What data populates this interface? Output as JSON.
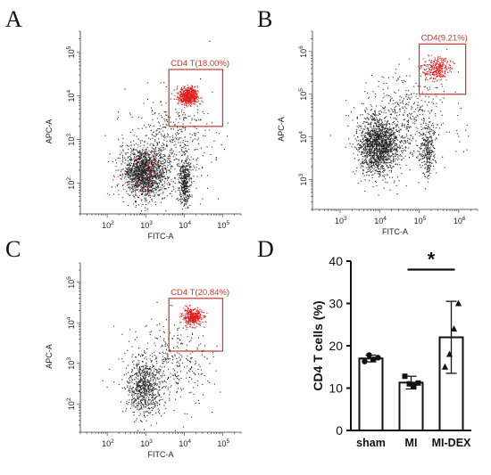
{
  "panels": {
    "A": {
      "label": "A",
      "xlabel": "FITC-A",
      "ylabel": "APC-A",
      "gate_label": "CD4 T(18.00%)",
      "x_ticks": [
        "10^2",
        "10^3",
        "10^4",
        "10^5"
      ],
      "y_ticks": [
        "10^2",
        "10^3",
        "10^4",
        "10^5"
      ],
      "x_exp": [
        2,
        3,
        4,
        5
      ],
      "y_exp": [
        2,
        3,
        4,
        5
      ]
    },
    "B": {
      "label": "B",
      "xlabel": "FITC-A",
      "ylabel": "APC-A",
      "gate_label": "CD4(9.21%)",
      "x_ticks": [
        "10^3",
        "10^4",
        "10^5",
        "10^6"
      ],
      "y_ticks": [
        "10^3",
        "10^4",
        "10^5",
        "10^6"
      ],
      "x_exp": [
        3,
        4,
        5,
        6
      ],
      "y_exp": [
        3,
        4,
        5,
        6
      ]
    },
    "C": {
      "label": "C",
      "xlabel": "FITC-A",
      "ylabel": "APC-A",
      "gate_label": "CD4 T(20.84%)",
      "x_ticks": [
        "10^2",
        "10^3",
        "10^4",
        "10^5"
      ],
      "y_ticks": [
        "10^2",
        "10^3",
        "10^4",
        "10^5"
      ],
      "x_exp": [
        2,
        3,
        4,
        5
      ],
      "y_exp": [
        2,
        3,
        4,
        5
      ]
    },
    "D": {
      "label": "D"
    }
  },
  "colors": {
    "gated_events": "#e01b1b",
    "ungated_events": "#222222",
    "gate_border": "#c0392b"
  },
  "chart_data": [
    {
      "type": "scatter",
      "panel": "A",
      "xlabel": "FITC-A",
      "ylabel": "APC-A",
      "scale": "log",
      "xlim": [
        20,
        300000
      ],
      "ylim": [
        20,
        300000
      ],
      "gate": {
        "label": "CD4 T(18.00%)",
        "x_range": [
          4000,
          100000
        ],
        "y_range": [
          2000,
          40000
        ],
        "percent": 18.0
      }
    },
    {
      "type": "scatter",
      "panel": "B",
      "xlabel": "FITC-A",
      "ylabel": "APC-A",
      "scale": "log",
      "xlim": [
        200,
        3000000
      ],
      "ylim": [
        200,
        3000000
      ],
      "gate": {
        "label": "CD4(9.21%)",
        "x_range": [
          100000,
          1500000
        ],
        "y_range": [
          100000,
          1500000
        ],
        "percent": 9.21
      }
    },
    {
      "type": "scatter",
      "panel": "C",
      "xlabel": "FITC-A",
      "ylabel": "APC-A",
      "scale": "log",
      "xlim": [
        20,
        300000
      ],
      "ylim": [
        20,
        300000
      ],
      "gate": {
        "label": "CD4 T(20.84%)",
        "x_range": [
          4000,
          100000
        ],
        "y_range": [
          2000,
          40000
        ],
        "percent": 20.84
      }
    },
    {
      "type": "bar",
      "panel": "D",
      "categories": [
        "sham",
        "MI",
        "MI-DEX"
      ],
      "values": [
        17.0,
        11.3,
        22.0
      ],
      "error": [
        0.8,
        1.5,
        8.5
      ],
      "points": [
        [
          16.3,
          17.8,
          16.8,
          17.2
        ],
        [
          12.8,
          11.0,
          10.5,
          11.2
        ],
        [
          15.0,
          18.0,
          24.0,
          30.0
        ]
      ],
      "ylabel": "CD4 T cells (%)",
      "ylim": [
        0,
        40
      ],
      "yticks": [
        0,
        10,
        20,
        30,
        40
      ],
      "significance": {
        "between": [
          "MI",
          "MI-DEX"
        ],
        "mark": "*"
      }
    }
  ]
}
